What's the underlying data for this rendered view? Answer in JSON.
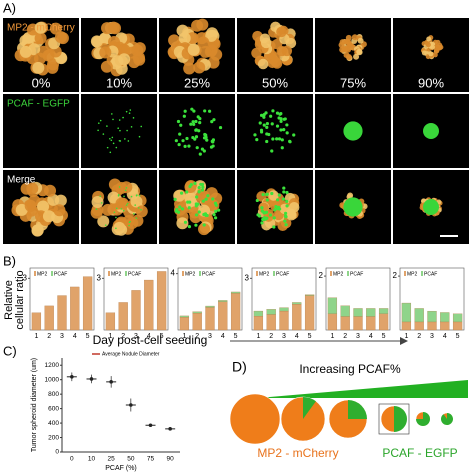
{
  "panel_a": {
    "label": "A)",
    "rows": [
      "MP2 - mCherry",
      "PCAF - EGFP",
      "Merge"
    ],
    "conditions": [
      "0%",
      "10%",
      "25%",
      "50%",
      "75%",
      "90%"
    ]
  },
  "panel_b": {
    "label": "B)",
    "y_label": [
      "Relative",
      "cellular ratio"
    ],
    "x_label": "Day post-cell seeding"
  },
  "panel_c": {
    "label": "C)"
  },
  "panel_d": {
    "label": "D)",
    "title": "Increasing PCAF%",
    "legend": [
      "MP2 - mCherry",
      "PCAF - EGFP"
    ]
  },
  "chart_data": [
    {
      "type": "bar",
      "categories": [
        "1",
        "2",
        "3",
        "4",
        "5"
      ],
      "ylim": [
        0,
        3.6
      ],
      "yticks": [
        3
      ],
      "series": [
        {
          "name": "MP2",
          "color": "#e0a36a",
          "values": [
            1.0,
            1.4,
            2.0,
            2.5,
            3.1
          ]
        },
        {
          "name": "PCAF",
          "color": "#8fd48a",
          "values": [
            0,
            0,
            0,
            0,
            0
          ]
        }
      ]
    },
    {
      "type": "bar",
      "categories": [
        "1",
        "2",
        "3",
        "4",
        "5"
      ],
      "ylim": [
        0,
        3.6
      ],
      "yticks": [
        3
      ],
      "series": [
        {
          "name": "MP2",
          "color": "#e0a36a",
          "values": [
            1.0,
            1.6,
            2.3,
            2.9,
            3.4
          ]
        },
        {
          "name": "PCAF",
          "color": "#8fd48a",
          "values": [
            0,
            0,
            0,
            0,
            0
          ]
        }
      ]
    },
    {
      "type": "bar",
      "categories": [
        "1",
        "2",
        "3",
        "4",
        "5"
      ],
      "ylim": [
        0,
        4.4
      ],
      "yticks": [
        4
      ],
      "series": [
        {
          "name": "MP2",
          "color": "#e0a36a",
          "values": [
            0.9,
            1.2,
            1.6,
            2.0,
            2.6
          ]
        },
        {
          "name": "PCAF",
          "color": "#8fd48a",
          "values": [
            0.1,
            0.1,
            0.1,
            0.1,
            0.1
          ]
        }
      ]
    },
    {
      "type": "bar",
      "categories": [
        "1",
        "2",
        "3",
        "4",
        "5"
      ],
      "ylim": [
        0,
        3.6
      ],
      "yticks": [
        3
      ],
      "series": [
        {
          "name": "MP2",
          "color": "#e0a36a",
          "values": [
            0.8,
            0.9,
            1.1,
            1.5,
            2.0
          ]
        },
        {
          "name": "PCAF",
          "color": "#8fd48a",
          "values": [
            0.3,
            0.3,
            0.2,
            0.1,
            0.05
          ]
        }
      ]
    },
    {
      "type": "bar",
      "categories": [
        "1",
        "2",
        "3",
        "4",
        "5"
      ],
      "ylim": [
        0,
        2.3
      ],
      "yticks": [
        2
      ],
      "series": [
        {
          "name": "MP2",
          "color": "#e0a36a",
          "values": [
            0.6,
            0.5,
            0.5,
            0.5,
            0.6
          ]
        },
        {
          "name": "PCAF",
          "color": "#8fd48a",
          "values": [
            0.6,
            0.4,
            0.3,
            0.3,
            0.2
          ]
        }
      ]
    },
    {
      "type": "bar",
      "categories": [
        "1",
        "2",
        "3",
        "4",
        "5"
      ],
      "ylim": [
        0,
        2.3
      ],
      "yticks": [
        2
      ],
      "series": [
        {
          "name": "MP2",
          "color": "#e0a36a",
          "values": [
            0.3,
            0.3,
            0.3,
            0.3,
            0.3
          ]
        },
        {
          "name": "PCAF",
          "color": "#8fd48a",
          "values": [
            0.7,
            0.5,
            0.4,
            0.35,
            0.3
          ]
        }
      ]
    },
    {
      "type": "scatter",
      "x_label": "PCAF (%)",
      "y_label": "Tumor spheroid diameter (um)",
      "categories": [
        "0",
        "10",
        "25",
        "50",
        "75",
        "90"
      ],
      "ylim": [
        0,
        1300
      ],
      "yticks": [
        0,
        200,
        400,
        600,
        800,
        1000,
        1200
      ],
      "series": [
        {
          "name": "Average Nodule Diameter",
          "color": "#222222",
          "values": [
            1040,
            1010,
            970,
            650,
            370,
            320
          ],
          "errors": [
            60,
            60,
            80,
            90,
            20,
            20
          ]
        }
      ]
    }
  ]
}
